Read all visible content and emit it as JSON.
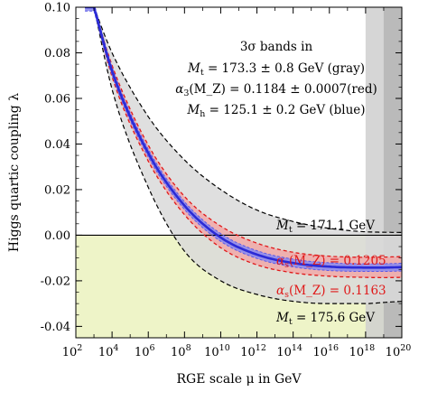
{
  "chart_data": {
    "type": "line",
    "xlabel": "RGE scale μ in GeV",
    "ylabel": "Higgs quartic coupling λ",
    "x_scale": "log10",
    "xlim": [
      100,
      1e+20
    ],
    "ylim": [
      -0.045,
      0.1
    ],
    "x_ticks": [
      {
        "base": "10",
        "exp": "2",
        "value": 100.0
      },
      {
        "base": "10",
        "exp": "4",
        "value": 10000.0
      },
      {
        "base": "10",
        "exp": "6",
        "value": 1000000.0
      },
      {
        "base": "10",
        "exp": "8",
        "value": 100000000.0
      },
      {
        "base": "10",
        "exp": "10",
        "value": 10000000000.0
      },
      {
        "base": "10",
        "exp": "12",
        "value": 1000000000000.0
      },
      {
        "base": "10",
        "exp": "14",
        "value": 100000000000000.0
      },
      {
        "base": "10",
        "exp": "16",
        "value": 1e+16
      },
      {
        "base": "10",
        "exp": "18",
        "value": 1e+18
      },
      {
        "base": "10",
        "exp": "20",
        "value": 1e+20
      }
    ],
    "y_ticks": [
      "0.10",
      "0.08",
      "0.06",
      "0.04",
      "0.02",
      "0.00",
      "-0.02",
      "-0.04"
    ],
    "y_tick_values": [
      0.1,
      0.08,
      0.06,
      0.04,
      0.02,
      0.0,
      -0.02,
      -0.04
    ],
    "x": [
      1000.0,
      10000.0,
      1000000.0,
      100000000.0,
      10000000000.0,
      1000000000000.0,
      100000000000000.0,
      1e+16,
      1e+18,
      1e+19,
      1e+20
    ],
    "series": [
      {
        "key": "central",
        "color": "#2b2bd6",
        "values": [
          0.1,
          0.072,
          0.036,
          0.013,
          -0.001,
          -0.0085,
          -0.0122,
          -0.0138,
          -0.0142,
          -0.0142,
          -0.014
        ]
      },
      {
        "key": "mt_low",
        "label": "M_t = 171.1 GeV",
        "color": "#000000",
        "values": [
          0.1,
          0.08,
          0.052,
          0.033,
          0.02,
          0.011,
          0.006,
          0.003,
          0.0015,
          0.0013,
          0.0012
        ]
      },
      {
        "key": "mt_high",
        "label": "M_t = 175.6 GeV",
        "color": "#000000",
        "values": [
          0.1,
          0.064,
          0.021,
          -0.007,
          -0.02,
          -0.026,
          -0.029,
          -0.03,
          -0.03,
          -0.0295,
          -0.029
        ]
      },
      {
        "key": "as_high",
        "label": "α_s(M_Z) = 0.1205",
        "color": "#e01818",
        "values": [
          0.1,
          0.0745,
          0.0395,
          0.017,
          0.004,
          -0.0035,
          -0.0075,
          -0.0092,
          -0.0097,
          -0.0096,
          -0.0094
        ]
      },
      {
        "key": "as_low",
        "label": "α_s(M_Z) = 0.1163",
        "color": "#e01818",
        "values": [
          0.1,
          0.0695,
          0.0325,
          0.009,
          -0.0055,
          -0.013,
          -0.0165,
          -0.018,
          -0.0185,
          -0.0186,
          -0.0185
        ]
      }
    ],
    "blue_band_halfwidth": 0.0017,
    "negative_region_color": "#eef4c8",
    "gray_band_color": "#d9d9d9",
    "planck_bands": [
      {
        "from": 1e+18,
        "to": 1e+20,
        "color": "#cfcfcf"
      },
      {
        "from": 1e+19,
        "to": 1e+20,
        "color": "#b5b5b5"
      }
    ],
    "legend_box": {
      "line1": "3σ bands in",
      "line2": "M_t = 173.3 ± 0.8 GeV (gray)",
      "line3": "α_3(M_Z) = 0.1184 ± 0.0007(red)",
      "line4": "M_h = 125.1 ± 0.2 GeV (blue)"
    },
    "annotations": {
      "mt_low": "M_t = 171.1 GeV",
      "mt_high": "M_t = 175.6 GeV",
      "as_high": "α_s(M_Z) = 0.1205",
      "as_low": "α_s(M_Z) = 0.1163"
    }
  }
}
